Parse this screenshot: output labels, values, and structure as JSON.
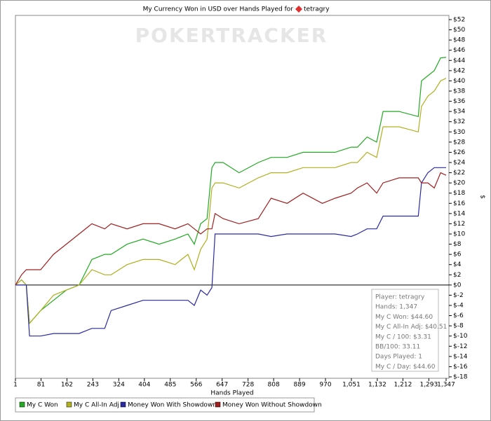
{
  "chart_data": {
    "type": "line",
    "title": "My Currency Won in USD over Hands Played for",
    "title_name": "tetragry",
    "watermark": "POKERTRACKER",
    "xlabel": "Hands Played",
    "ylabel": "$",
    "x": [
      1,
      20,
      35,
      45,
      80,
      120,
      160,
      200,
      240,
      280,
      300,
      350,
      400,
      450,
      500,
      540,
      560,
      580,
      600,
      615,
      625,
      650,
      700,
      760,
      800,
      850,
      900,
      960,
      1000,
      1050,
      1070,
      1100,
      1130,
      1150,
      1200,
      1260,
      1270,
      1290,
      1310,
      1330,
      1347
    ],
    "series": [
      {
        "name": "My C Won",
        "color": "#22aa22",
        "values": [
          0,
          1,
          0,
          -7.5,
          -5,
          -3,
          -1,
          0,
          5,
          6,
          6,
          8,
          9,
          8,
          9,
          10,
          8,
          12,
          13,
          23,
          24,
          24,
          22,
          24,
          25,
          25,
          26,
          26,
          26,
          27,
          27,
          29,
          28,
          34,
          34,
          33,
          40,
          41,
          42,
          44.5,
          44.6
        ]
      },
      {
        "name": "My C All-In Adj",
        "color": "#b0b020",
        "values": [
          0,
          1,
          0,
          -7.5,
          -5,
          -2,
          -1,
          0,
          3,
          2,
          2,
          4,
          5,
          5,
          4,
          6,
          3,
          7,
          9,
          19,
          20,
          20,
          19,
          21,
          22,
          22,
          23,
          23,
          23,
          24,
          24,
          26,
          25,
          31,
          31,
          30,
          35,
          37,
          38,
          40,
          40.51
        ]
      },
      {
        "name": "Money Won With Showdown",
        "color": "#2a2aa0",
        "values": [
          0,
          0,
          0,
          -10,
          -10,
          -9.5,
          -9.5,
          -9.5,
          -8.5,
          -8.5,
          -5,
          -4,
          -3,
          -3,
          -3,
          -3,
          -4,
          -1,
          -2,
          -0.5,
          10,
          10,
          10,
          10,
          9.5,
          10,
          10,
          10,
          10,
          9.5,
          10,
          11,
          11,
          13.5,
          13.5,
          13.5,
          20,
          22,
          23,
          23,
          23
        ]
      },
      {
        "name": "Money Won Without Showdown",
        "color": "#a02020",
        "values": [
          0,
          2,
          3,
          3,
          3,
          6,
          8,
          10,
          12,
          11,
          12,
          11,
          12,
          12,
          11,
          12,
          11,
          10,
          11,
          11,
          14,
          13,
          12,
          13,
          17,
          16,
          18,
          16,
          17,
          18,
          19,
          20,
          18,
          20,
          21,
          21,
          20,
          20,
          19,
          22,
          21.5
        ]
      }
    ],
    "xlim": [
      1,
      1347
    ],
    "xticks": [
      1,
      81,
      162,
      243,
      324,
      404,
      485,
      566,
      647,
      728,
      808,
      889,
      970,
      {
        "value": 1051,
        "label": "1,051"
      },
      {
        "value": 1132,
        "label": "1,132"
      },
      {
        "value": 1212,
        "label": "1,212"
      },
      {
        "value": 1293,
        "label": "1,293"
      },
      {
        "value": 1347,
        "label": "1,347"
      }
    ],
    "ylim": [
      -18,
      52
    ],
    "yticks": [
      {
        "value": -18,
        "label": "$-18"
      },
      {
        "value": -16,
        "label": "$-16"
      },
      {
        "value": -14,
        "label": "$-14"
      },
      {
        "value": -12,
        "label": "$-12"
      },
      {
        "value": -10,
        "label": "$-10"
      },
      {
        "value": -8,
        "label": "$-8"
      },
      {
        "value": -6,
        "label": "$-6"
      },
      {
        "value": -4,
        "label": "$-4"
      },
      {
        "value": -2,
        "label": "$-2"
      },
      {
        "value": 0,
        "label": "$0"
      },
      {
        "value": 2,
        "label": "$2"
      },
      {
        "value": 4,
        "label": "$4"
      },
      {
        "value": 6,
        "label": "$6"
      },
      {
        "value": 8,
        "label": "$8"
      },
      {
        "value": 10,
        "label": "$10"
      },
      {
        "value": 12,
        "label": "$12"
      },
      {
        "value": 14,
        "label": "$14"
      },
      {
        "value": 16,
        "label": "$16"
      },
      {
        "value": 18,
        "label": "$18"
      },
      {
        "value": 20,
        "label": "$20"
      },
      {
        "value": 22,
        "label": "$22"
      },
      {
        "value": 24,
        "label": "$24"
      },
      {
        "value": 26,
        "label": "$26"
      },
      {
        "value": 28,
        "label": "$28"
      },
      {
        "value": 30,
        "label": "$30"
      },
      {
        "value": 32,
        "label": "$32"
      },
      {
        "value": 34,
        "label": "$34"
      },
      {
        "value": 36,
        "label": "$36"
      },
      {
        "value": 38,
        "label": "$38"
      },
      {
        "value": 40,
        "label": "$40"
      },
      {
        "value": 42,
        "label": "$42"
      },
      {
        "value": 44,
        "label": "$44"
      },
      {
        "value": 46,
        "label": "$46"
      },
      {
        "value": 48,
        "label": "$48"
      },
      {
        "value": 50,
        "label": "$50"
      },
      {
        "value": 52,
        "label": "$52"
      }
    ],
    "grid": false,
    "legend": "bottom",
    "annotations": [
      "Player: tetragry",
      "Hands: 1,347",
      "My C Won: $44.60",
      "My C All-In Adj: $40.51",
      "My C / 100: $3.31",
      "BB/100: 33.11",
      "Days Played: 1",
      "My C / Day: $44.60"
    ]
  }
}
